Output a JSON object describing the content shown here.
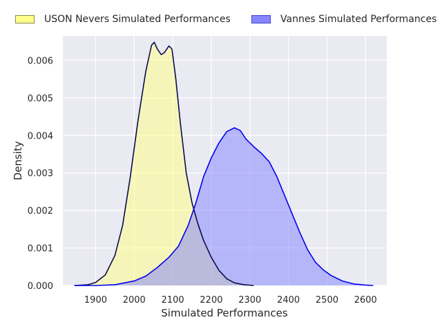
{
  "chart_data": {
    "type": "area",
    "xlabel": "Simulated Performances",
    "ylabel": "Density",
    "xlim": [
      1815,
      2655
    ],
    "ylim": [
      0,
      0.00665
    ],
    "x_ticks": [
      "1900",
      "2000",
      "2100",
      "2200",
      "2300",
      "2400",
      "2500",
      "2600"
    ],
    "y_ticks": [
      "0.000",
      "0.001",
      "0.002",
      "0.003",
      "0.004",
      "0.005",
      "0.006"
    ],
    "grid": true,
    "legend_position": "top",
    "series": [
      {
        "name": "USON Nevers Simulated Performances",
        "fill_color": "#ffff80",
        "line_color": "#0a0a50",
        "points": [
          [
            1845,
            0.0
          ],
          [
            1880,
            2e-05
          ],
          [
            1900,
            8e-05
          ],
          [
            1925,
            0.00028
          ],
          [
            1950,
            0.0008
          ],
          [
            1970,
            0.0016
          ],
          [
            1990,
            0.0029
          ],
          [
            2010,
            0.0044
          ],
          [
            2030,
            0.0057
          ],
          [
            2045,
            0.0064
          ],
          [
            2052,
            0.00648
          ],
          [
            2060,
            0.0063
          ],
          [
            2070,
            0.00615
          ],
          [
            2078,
            0.0062
          ],
          [
            2090,
            0.00638
          ],
          [
            2098,
            0.0063
          ],
          [
            2108,
            0.0055
          ],
          [
            2120,
            0.0043
          ],
          [
            2135,
            0.003
          ],
          [
            2150,
            0.0022
          ],
          [
            2165,
            0.00165
          ],
          [
            2180,
            0.0012
          ],
          [
            2200,
            0.00075
          ],
          [
            2220,
            0.0004
          ],
          [
            2240,
            0.00018
          ],
          [
            2260,
            7e-05
          ],
          [
            2285,
            2e-05
          ],
          [
            2310,
            0.0
          ]
        ]
      },
      {
        "name": "Vannes Simulated Performances",
        "fill_color": "#8080ff",
        "line_color": "#0000ee",
        "points": [
          [
            1845,
            0.0
          ],
          [
            1900,
            0.0
          ],
          [
            1950,
            2e-05
          ],
          [
            2000,
            0.00012
          ],
          [
            2030,
            0.00025
          ],
          [
            2060,
            0.00048
          ],
          [
            2090,
            0.00075
          ],
          [
            2115,
            0.00105
          ],
          [
            2140,
            0.0016
          ],
          [
            2160,
            0.0022
          ],
          [
            2180,
            0.0029
          ],
          [
            2200,
            0.0034
          ],
          [
            2220,
            0.0038
          ],
          [
            2240,
            0.0041
          ],
          [
            2260,
            0.0042
          ],
          [
            2275,
            0.00413
          ],
          [
            2290,
            0.0039
          ],
          [
            2310,
            0.0037
          ],
          [
            2330,
            0.00352
          ],
          [
            2350,
            0.0033
          ],
          [
            2370,
            0.0029
          ],
          [
            2390,
            0.0024
          ],
          [
            2410,
            0.0019
          ],
          [
            2430,
            0.0014
          ],
          [
            2450,
            0.00095
          ],
          [
            2470,
            0.00062
          ],
          [
            2490,
            0.00042
          ],
          [
            2510,
            0.00027
          ],
          [
            2540,
            0.00012
          ],
          [
            2570,
            4e-05
          ],
          [
            2600,
            1e-05
          ],
          [
            2620,
            0.0
          ]
        ]
      }
    ]
  }
}
